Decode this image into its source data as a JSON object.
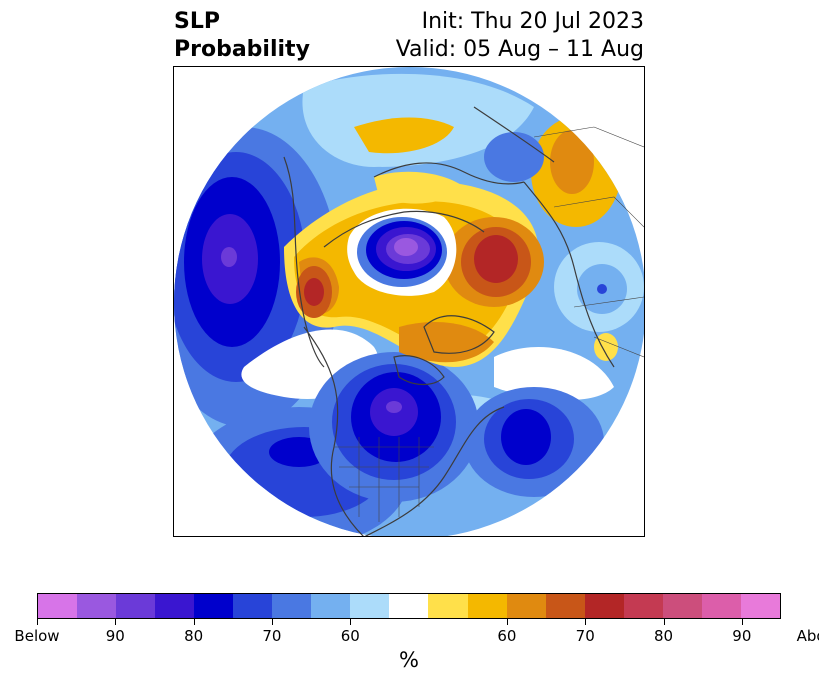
{
  "title": {
    "left_line1": "SLP",
    "left_line2": "Probability",
    "right_line1": "Init: Thu 20 Jul 2023",
    "right_line2": "Valid: 05 Aug – 11 Aug"
  },
  "colorbar": {
    "unit": "%",
    "segments": [
      "#d774e8",
      "#9a58e0",
      "#6b3ad8",
      "#3a16d0",
      "#0000cc",
      "#2844d8",
      "#4a78e2",
      "#74b0f0",
      "#acdcfa",
      "#ffffff",
      "#ffe04a",
      "#f4b800",
      "#e08a10",
      "#c85618",
      "#b32626",
      "#c43a52",
      "#cc4e7c",
      "#dc5eaa",
      "#e87ada"
    ],
    "ticks": [
      {
        "label": "Below",
        "index": 0
      },
      {
        "label": "90",
        "index": 2
      },
      {
        "label": "80",
        "index": 4
      },
      {
        "label": "70",
        "index": 6
      },
      {
        "label": "60",
        "index": 8
      },
      {
        "label": "60",
        "index": 12
      },
      {
        "label": "70",
        "index": 14
      },
      {
        "label": "80",
        "index": 16
      },
      {
        "label": "90",
        "index": 18
      },
      {
        "label": "Above",
        "index": 20
      }
    ]
  },
  "map": {
    "projection": "north-polar-stereographic",
    "colors": {
      "coast": "#3c3c3c",
      "border": "#444444"
    }
  }
}
